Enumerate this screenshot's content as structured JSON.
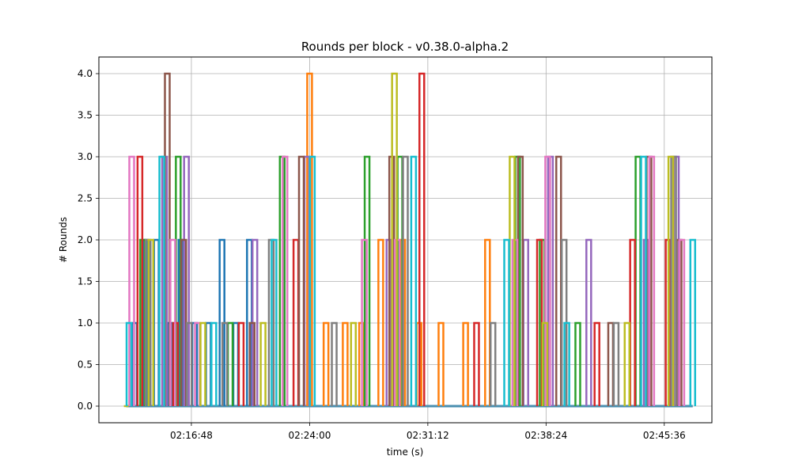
{
  "chart_data": {
    "type": "line",
    "title": "Rounds per block  -  v0.38.0-alpha.2",
    "xlabel": "time (s)",
    "ylabel": "# Rounds",
    "xlim": [
      "02:11:10",
      "02:48:30"
    ],
    "ylim": [
      -0.2,
      4.2
    ],
    "grid": true,
    "x_ticks": [
      "02:16:48",
      "02:24:00",
      "02:31:12",
      "02:38:24",
      "02:45:36"
    ],
    "y_ticks": [
      "0.0",
      "0.5",
      "1.0",
      "1.5",
      "2.0",
      "2.5",
      "3.0",
      "3.5",
      "4.0"
    ],
    "x_range_data": [
      "02:12:50",
      "02:47:20"
    ],
    "series_colors": [
      "#1f77b4",
      "#ff7f0e",
      "#2ca02c",
      "#d62728",
      "#9467bd",
      "#8c564b",
      "#e377c2",
      "#7f7f7f",
      "#bcbd22",
      "#17becf"
    ],
    "series": [
      {
        "x": [
          "02:13:20",
          "02:14:00",
          "02:14:40",
          "02:15:30",
          "02:16:10",
          "02:17:00",
          "02:17:50",
          "02:18:40",
          "02:19:30",
          "02:20:20"
        ],
        "values": [
          1,
          2,
          2,
          1,
          2,
          1,
          1,
          2,
          1,
          2
        ]
      },
      {
        "x": [
          "02:24:00",
          "02:25:00",
          "02:26:10",
          "02:27:10",
          "02:28:20",
          "02:29:40",
          "02:30:40",
          "02:32:00",
          "02:33:30",
          "02:34:50"
        ],
        "values": [
          4,
          1,
          1,
          1,
          2,
          2,
          1,
          1,
          1,
          2
        ]
      },
      {
        "x": [
          "02:13:50",
          "02:16:00",
          "02:19:10",
          "02:22:20",
          "02:27:30",
          "02:29:30",
          "02:36:40",
          "02:38:10",
          "02:40:20",
          "02:44:00"
        ],
        "values": [
          2,
          3,
          1,
          3,
          3,
          3,
          3,
          2,
          1,
          3
        ]
      },
      {
        "x": [
          "02:13:40",
          "02:15:50",
          "02:19:50",
          "02:23:10",
          "02:30:50",
          "02:34:10",
          "02:38:00",
          "02:41:30",
          "02:43:40",
          "02:45:50"
        ],
        "values": [
          3,
          1,
          1,
          2,
          4,
          1,
          2,
          1,
          2,
          2
        ]
      },
      {
        "x": [
          "02:15:10",
          "02:16:30",
          "02:20:40",
          "02:23:50",
          "02:28:50",
          "02:37:10",
          "02:38:40",
          "02:41:00",
          "02:44:30",
          "02:46:20"
        ],
        "values": [
          3,
          3,
          2,
          3,
          2,
          2,
          3,
          2,
          2,
          3
        ]
      },
      {
        "x": [
          "02:15:20",
          "02:16:20",
          "02:20:30",
          "02:23:30",
          "02:29:00",
          "02:36:50",
          "02:39:10",
          "02:42:20",
          "02:44:40",
          "02:46:30"
        ],
        "values": [
          4,
          2,
          1,
          3,
          3,
          3,
          3,
          1,
          3,
          2
        ]
      },
      {
        "x": [
          "02:13:10",
          "02:15:40",
          "02:17:10",
          "02:22:30",
          "02:27:20",
          "02:29:20",
          "02:36:30",
          "02:38:30",
          "02:44:50",
          "02:46:40"
        ],
        "values": [
          3,
          2,
          1,
          3,
          2,
          2,
          2,
          3,
          3,
          2
        ]
      },
      {
        "x": [
          "02:14:10",
          "02:16:40",
          "02:18:50",
          "02:21:40",
          "02:25:30",
          "02:29:50",
          "02:35:10",
          "02:39:30",
          "02:42:40",
          "02:46:10"
        ],
        "values": [
          2,
          1,
          1,
          2,
          1,
          3,
          1,
          2,
          1,
          3
        ]
      },
      {
        "x": [
          "02:12:50",
          "02:14:20",
          "02:17:30",
          "02:21:10",
          "02:26:40",
          "02:29:10",
          "02:36:20",
          "02:38:20",
          "02:43:20",
          "02:46:00"
        ],
        "values": [
          0,
          2,
          1,
          1,
          1,
          4,
          3,
          1,
          1,
          3
        ]
      },
      {
        "x": [
          "02:13:00",
          "02:15:00",
          "02:18:10",
          "02:21:50",
          "02:24:10",
          "02:30:20",
          "02:36:00",
          "02:39:40",
          "02:44:20",
          "02:47:20"
        ],
        "values": [
          1,
          3,
          1,
          2,
          3,
          3,
          2,
          1,
          3,
          2
        ]
      }
    ]
  }
}
